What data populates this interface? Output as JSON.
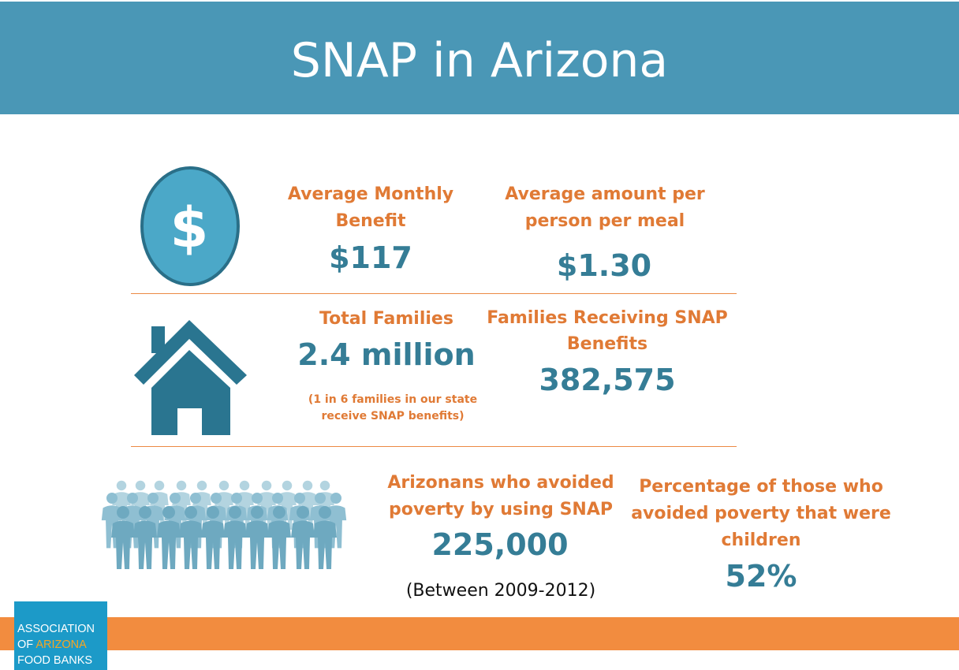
{
  "header": {
    "title": "SNAP in Arizona"
  },
  "colors": {
    "header_bg": "#4a97b6",
    "label": "#e07a35",
    "value": "#357d96",
    "divider": "#ec8a44",
    "footer": "#f28c3f",
    "logo_bg": "#1c9ac8"
  },
  "icons": {
    "coin": "dollar-coin-icon",
    "house": "house-icon",
    "people": "crowd-icon"
  },
  "row1": {
    "coin_symbol": "$",
    "stat1": {
      "label_line1": "Average Monthly",
      "label_line2": "Benefit",
      "value": "$117"
    },
    "stat2": {
      "label_line1": "Average amount per",
      "label_line2": "person per meal",
      "value": "$1.30"
    }
  },
  "row2": {
    "stat1": {
      "label": "Total Families",
      "value": "2.4 million",
      "note_line1": "(1 in 6 families in our state",
      "note_line2": "receive SNAP benefits)"
    },
    "stat2": {
      "label_line1": "Families Receiving SNAP",
      "label_line2": "Benefits",
      "value": "382,575"
    }
  },
  "row3": {
    "stat1": {
      "label_line1": "Arizonans who avoided",
      "label_line2": "poverty by using SNAP",
      "value": "225,000",
      "period": "(Between 2009-2012)"
    },
    "stat2": {
      "label_line1": "Percentage of those who",
      "label_line2": "avoided poverty that were",
      "label_line3": "children",
      "value": "52%"
    }
  },
  "logo": {
    "line1": "ASSOCIATION",
    "line2_prefix": "OF ",
    "line2_accent": "ARIZONA",
    "line3": "FOOD BANKS"
  }
}
